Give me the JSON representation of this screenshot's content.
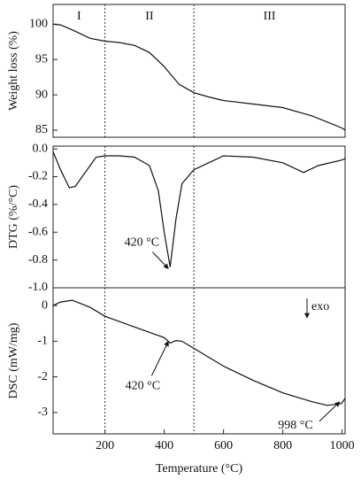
{
  "chart_data": [
    {
      "type": "line",
      "y_label": "Weight loss (%)",
      "color": "#111",
      "xlim": [
        25,
        1010
      ],
      "ylim": [
        84,
        102.8
      ],
      "yticks": [
        85,
        90,
        95,
        100
      ],
      "vlines": [
        200,
        500
      ],
      "region_labels": [
        "I",
        "II",
        "III"
      ],
      "x": [
        25,
        50,
        100,
        150,
        200,
        250,
        300,
        350,
        400,
        420,
        450,
        500,
        550,
        600,
        700,
        800,
        900,
        1000,
        1010
      ],
      "values": [
        100,
        99.9,
        99,
        98,
        97.6,
        97.4,
        97,
        96,
        94,
        93,
        91.5,
        90.3,
        89.7,
        89.2,
        88.7,
        88.2,
        87,
        85.3,
        85
      ]
    },
    {
      "type": "line",
      "y_label": "DTG (%/°C)",
      "color": "#111",
      "xlim": [
        25,
        1010
      ],
      "ylim": [
        -1.0,
        0.02
      ],
      "yticks": [
        {
          "value": 0,
          "label": "0.0"
        },
        {
          "value": -0.2,
          "label": "-0.2"
        },
        {
          "value": -0.4,
          "label": "-0.4"
        },
        {
          "value": -0.6,
          "label": "-0.6"
        },
        {
          "value": -0.8,
          "label": "-0.8"
        },
        {
          "value": -1.0,
          "label": "-1.0"
        }
      ],
      "vlines": [
        200,
        500
      ],
      "annotations": [
        {
          "text": "420 °C",
          "x": 420,
          "y": -0.85
        }
      ],
      "x": [
        25,
        50,
        80,
        100,
        130,
        170,
        200,
        250,
        300,
        350,
        380,
        400,
        420,
        440,
        460,
        500,
        550,
        600,
        700,
        800,
        870,
        920,
        1000,
        1010
      ],
      "values": [
        -0.02,
        -0.15,
        -0.28,
        -0.27,
        -0.18,
        -0.06,
        -0.05,
        -0.05,
        -0.06,
        -0.12,
        -0.3,
        -0.6,
        -0.85,
        -0.5,
        -0.25,
        -0.15,
        -0.1,
        -0.05,
        -0.06,
        -0.1,
        -0.17,
        -0.12,
        -0.08,
        -0.07
      ]
    },
    {
      "type": "line",
      "y_label": "DSC (mW/mg)",
      "x_label": "Temperature (°C)",
      "color": "#111",
      "xlim": [
        25,
        1010
      ],
      "ylim": [
        -3.6,
        0.5
      ],
      "yticks": [
        -3,
        -2,
        -1,
        0
      ],
      "xticks": [
        200,
        400,
        600,
        800,
        1000
      ],
      "vlines": [
        200,
        500
      ],
      "exo_label": "exo",
      "annotations": [
        {
          "text": "420 °C",
          "x": 420,
          "y": -1.05
        },
        {
          "text": "998 °C",
          "x": 998,
          "y": -2.75
        }
      ],
      "x": [
        25,
        50,
        90,
        150,
        200,
        300,
        400,
        420,
        440,
        460,
        500,
        600,
        700,
        800,
        900,
        950,
        998,
        1010
      ],
      "values": [
        0,
        0.1,
        0.15,
        -0.05,
        -0.3,
        -0.6,
        -0.9,
        -1.05,
        -0.98,
        -1.0,
        -1.2,
        -1.7,
        -2.1,
        -2.45,
        -2.7,
        -2.8,
        -2.75,
        -2.6
      ]
    }
  ]
}
